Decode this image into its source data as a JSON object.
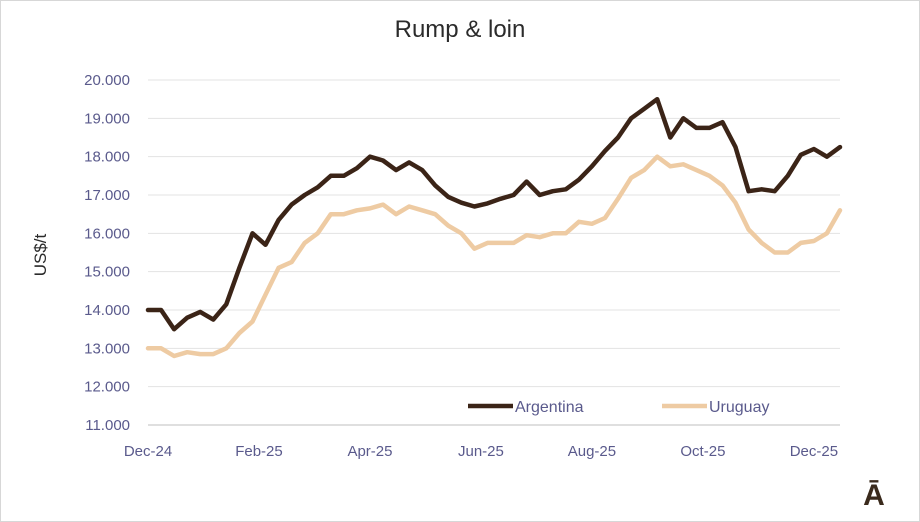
{
  "chart_data": {
    "type": "line",
    "title": "Rump & loin",
    "xlabel": "",
    "ylabel": "US$/t",
    "ylim": [
      11000,
      20000
    ],
    "yticks": [
      "11.000",
      "12.000",
      "13.000",
      "14.000",
      "15.000",
      "16.000",
      "17.000",
      "18.000",
      "19.000",
      "20.000"
    ],
    "xticks": [
      "Dec-24",
      "Feb-25",
      "Apr-25",
      "Jun-25",
      "Aug-25",
      "Oct-25",
      "Dec-25"
    ],
    "grid": "horizontal",
    "legend": "bottom-right",
    "series": [
      {
        "name": "Argentina",
        "color": "#3b2417",
        "values": [
          14000,
          14000,
          13500,
          13800,
          13950,
          13750,
          14150,
          15100,
          16000,
          15700,
          16350,
          16750,
          17000,
          17200,
          17500,
          17500,
          17700,
          18000,
          17900,
          17650,
          17850,
          17650,
          17250,
          16950,
          16800,
          16700,
          16780,
          16900,
          17000,
          17350,
          17000,
          17100,
          17150,
          17400,
          17750,
          18150,
          18500,
          19000,
          19250,
          19500,
          18500,
          19000,
          18750,
          18750,
          18900,
          18250,
          17100,
          17150,
          17100,
          17500,
          18050,
          18200,
          18000,
          18250
        ]
      },
      {
        "name": "Uruguay",
        "color": "#eecba3",
        "values": [
          13000,
          13000,
          12800,
          12900,
          12850,
          12850,
          13000,
          13400,
          13700,
          14400,
          15100,
          15250,
          15750,
          16000,
          16500,
          16500,
          16600,
          16650,
          16750,
          16500,
          16700,
          16600,
          16500,
          16200,
          16000,
          15600,
          15750,
          15750,
          15750,
          15950,
          15900,
          16000,
          16000,
          16300,
          16250,
          16400,
          16900,
          17450,
          17650,
          18000,
          17750,
          17800,
          17650,
          17500,
          17250,
          16800,
          16100,
          15750,
          15500,
          15500,
          15750,
          15800,
          16000,
          16600
        ]
      }
    ]
  },
  "brand_mark": "Ā"
}
